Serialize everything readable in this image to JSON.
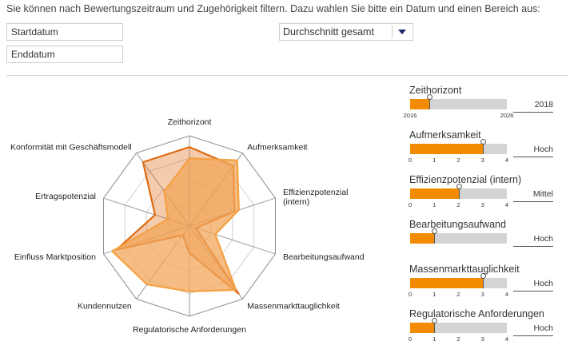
{
  "intro_text": "Sie können nach Bewertungszeitraum und Zugehörigkeit filtern. Dazu wahlen Sie bitte ein Datum und einen Bereich aus:",
  "filters": {
    "start_placeholder": "Startdatum",
    "end_placeholder": "Enddatum",
    "area_select": "Durchschnitt gesamt"
  },
  "colors": {
    "accent": "#f28b00",
    "dark_orange": "#e06a10",
    "fill_orange": "#f2a65a"
  },
  "chart_data": {
    "type": "radar",
    "levels": 4,
    "axes": [
      "Zeithorizont",
      "Aufmerksamkeit",
      "Effizienzpotenzial (intern)",
      "Bearbeitungsaufwand",
      "Massenmarkttauglichkeit",
      "Regulatorische Anforderungen",
      "Kundennutzen",
      "Einfluss Marktposition",
      "Ertragspotenzial",
      "Konformität mit Geschäftsmodell"
    ],
    "series": [
      {
        "values": [
          3.5,
          3.3,
          2.1,
          0.3,
          3.7,
          1.2,
          0.5,
          3.4,
          1.6,
          3.5
        ]
      },
      {
        "values": [
          3.0,
          3.6,
          2.3,
          1.2,
          3.5,
          2.9,
          3.2,
          3.6,
          1.0,
          1.9
        ]
      }
    ]
  },
  "sliders": [
    {
      "title": "Zeithorizont",
      "fraction": 0.2,
      "ticks": [
        "2016",
        "2026"
      ],
      "value": "2018"
    },
    {
      "title": "Aufmerksamkeit",
      "fraction": 0.75,
      "ticks": [
        "0",
        "1",
        "2",
        "3",
        "4"
      ],
      "value": "Hoch"
    },
    {
      "title": "Effizienzpotenzial (intern)",
      "fraction": 0.5,
      "ticks": [
        "0",
        "1",
        "2",
        "3",
        "4"
      ],
      "value": "Mittel"
    },
    {
      "title": "Bearbeitungsaufwand",
      "fraction": 0.25,
      "ticks": [],
      "value": "Hoch"
    },
    {
      "title": "Massenmarkttauglichkeit",
      "fraction": 0.75,
      "ticks": [
        "0",
        "1",
        "2",
        "3",
        "4"
      ],
      "value": "Hoch"
    },
    {
      "title": "Regulatorische Anforderungen",
      "fraction": 0.25,
      "ticks": [
        "0",
        "1",
        "2",
        "3",
        "4"
      ],
      "value": "Hoch"
    }
  ]
}
